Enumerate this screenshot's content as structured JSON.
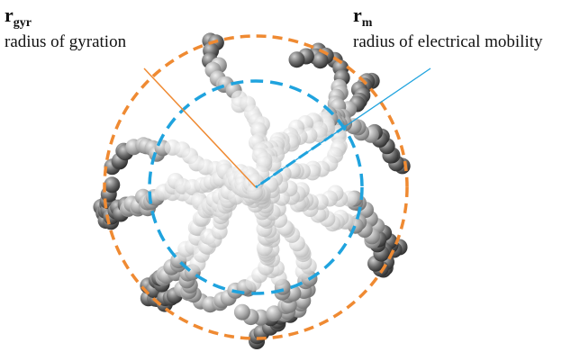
{
  "labels": [
    {
      "symbol": "r",
      "subscript": "gyr",
      "description": "radius of gyration"
    },
    {
      "symbol": "r",
      "subscript": "m",
      "description": "radius of electrical mobility"
    }
  ]
}
